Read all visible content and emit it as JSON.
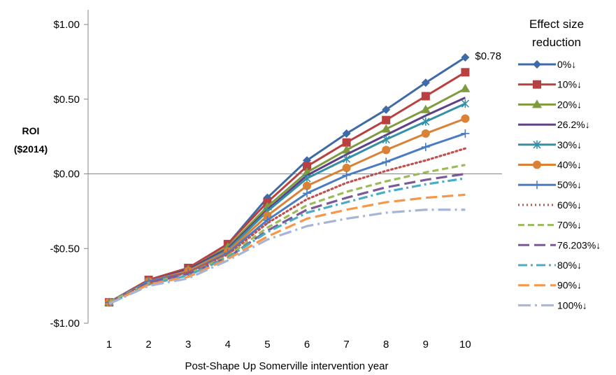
{
  "chart_data": {
    "type": "line",
    "title": "",
    "xlabel": "Post-Shape Up Somerville intervention year",
    "ylabel_lines": [
      "ROI",
      "($2014)"
    ],
    "x": [
      1,
      2,
      3,
      4,
      5,
      6,
      7,
      8,
      9,
      10
    ],
    "x_tick_labels": [
      "1",
      "2",
      "3",
      "4",
      "5",
      "6",
      "7",
      "8",
      "9",
      "10"
    ],
    "ylim": [
      -1.0,
      1.0
    ],
    "y_ticks": [
      1.0,
      0.5,
      0.0,
      -0.5,
      -1.0
    ],
    "y_tick_labels": [
      "$1.00",
      "$0.50",
      "$0.00",
      "-$0.50",
      "-$1.00"
    ],
    "grid": false,
    "legend": {
      "placement": "right",
      "title_lines": [
        "Effect size",
        "reduction"
      ]
    },
    "annotations": [
      {
        "text": "$0.78",
        "series_index": 0,
        "x": 10,
        "y": 0.78
      }
    ],
    "series": [
      {
        "name": "0%↓",
        "color": "#3f6aa8",
        "dash": "solid",
        "marker": "diamond",
        "values": [
          -0.86,
          -0.71,
          -0.63,
          -0.47,
          -0.16,
          0.09,
          0.27,
          0.43,
          0.61,
          0.78
        ]
      },
      {
        "name": "10%↓",
        "color": "#b84040",
        "dash": "solid",
        "marker": "square",
        "values": [
          -0.86,
          -0.71,
          -0.63,
          -0.47,
          -0.19,
          0.05,
          0.21,
          0.36,
          0.52,
          0.68
        ]
      },
      {
        "name": "20%↓",
        "color": "#7e9c3f",
        "dash": "solid",
        "marker": "triangle",
        "values": [
          -0.86,
          -0.72,
          -0.64,
          -0.49,
          -0.22,
          0.01,
          0.16,
          0.3,
          0.43,
          0.57
        ]
      },
      {
        "name": "26.2%↓",
        "color": "#5f3f86",
        "dash": "solid",
        "marker": "none",
        "values": [
          -0.86,
          -0.72,
          -0.64,
          -0.5,
          -0.24,
          -0.01,
          0.13,
          0.26,
          0.39,
          0.51
        ]
      },
      {
        "name": "30%↓",
        "color": "#3490a6",
        "dash": "solid",
        "marker": "asterisk",
        "values": [
          -0.86,
          -0.72,
          -0.65,
          -0.51,
          -0.25,
          -0.03,
          0.1,
          0.23,
          0.35,
          0.47
        ]
      },
      {
        "name": "40%↓",
        "color": "#d98235",
        "dash": "solid",
        "marker": "circle",
        "values": [
          -0.86,
          -0.72,
          -0.65,
          -0.52,
          -0.28,
          -0.08,
          0.04,
          0.16,
          0.27,
          0.37
        ]
      },
      {
        "name": "50%↓",
        "color": "#4a7cc3",
        "dash": "solid",
        "marker": "plus",
        "values": [
          -0.86,
          -0.72,
          -0.66,
          -0.53,
          -0.31,
          -0.13,
          -0.01,
          0.08,
          0.18,
          0.27
        ]
      },
      {
        "name": "60%↓",
        "color": "#c0504d",
        "dash": "dot",
        "marker": "none",
        "values": [
          -0.86,
          -0.73,
          -0.66,
          -0.54,
          -0.33,
          -0.17,
          -0.06,
          0.02,
          0.09,
          0.17
        ]
      },
      {
        "name": "70%↓",
        "color": "#9bbb59",
        "dash": "dash",
        "marker": "none",
        "values": [
          -0.86,
          -0.73,
          -0.67,
          -0.55,
          -0.36,
          -0.21,
          -0.12,
          -0.05,
          0.01,
          0.06
        ]
      },
      {
        "name": "76.203%↓",
        "color": "#7a5a99",
        "dash": "longdash",
        "marker": "none",
        "values": [
          -0.87,
          -0.73,
          -0.67,
          -0.56,
          -0.38,
          -0.24,
          -0.16,
          -0.09,
          -0.04,
          0.0
        ]
      },
      {
        "name": "80%↓",
        "color": "#4bacc6",
        "dash": "dashdot",
        "marker": "none",
        "values": [
          -0.87,
          -0.74,
          -0.68,
          -0.56,
          -0.39,
          -0.26,
          -0.19,
          -0.12,
          -0.07,
          -0.03
        ]
      },
      {
        "name": "90%↓",
        "color": "#f79646",
        "dash": "longdash",
        "marker": "none",
        "values": [
          -0.87,
          -0.74,
          -0.69,
          -0.57,
          -0.42,
          -0.3,
          -0.24,
          -0.19,
          -0.16,
          -0.14
        ]
      },
      {
        "name": "100%↓",
        "color": "#a6b5d7",
        "dash": "longdashdot",
        "marker": "none",
        "values": [
          -0.87,
          -0.75,
          -0.7,
          -0.58,
          -0.44,
          -0.35,
          -0.3,
          -0.26,
          -0.24,
          -0.24
        ]
      }
    ]
  }
}
